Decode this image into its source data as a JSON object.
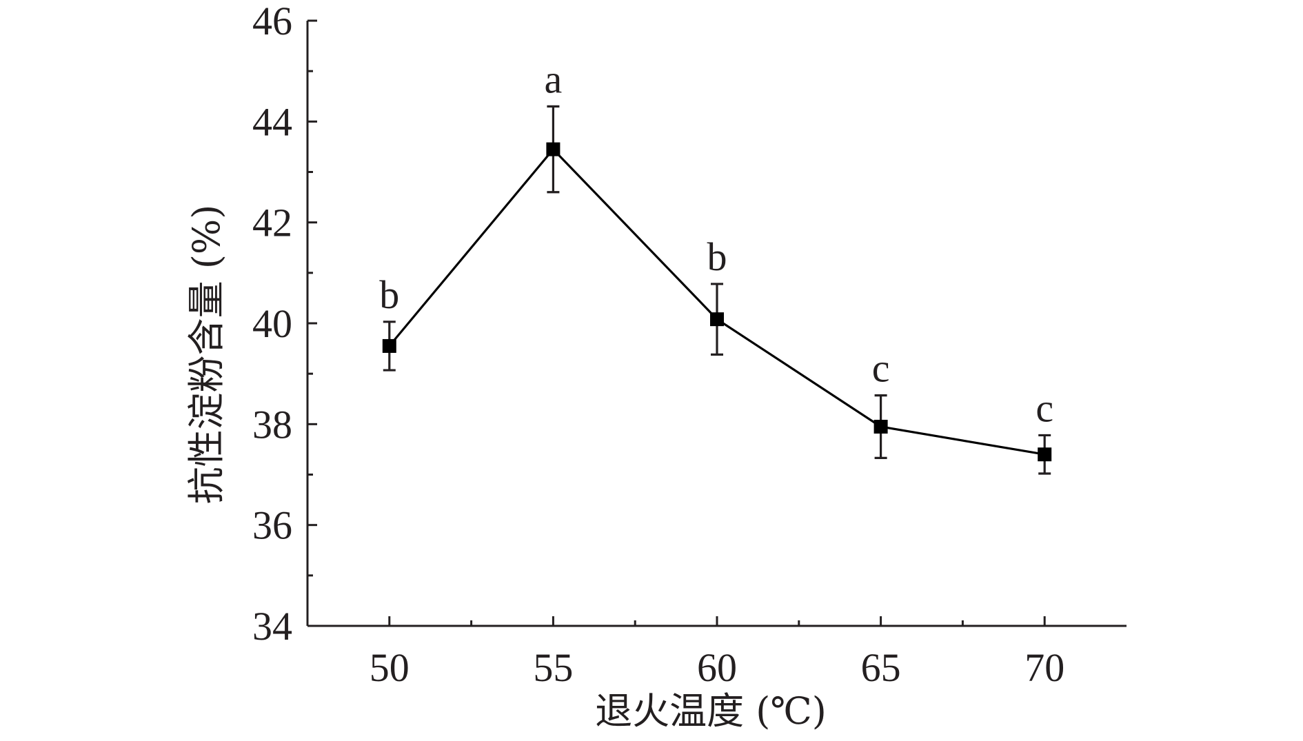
{
  "chart_data": {
    "type": "line",
    "title": "",
    "xlabel": "退火温度 (℃)",
    "ylabel": "抗性淀粉含量 (%)",
    "xlim": [
      47.5,
      72.5
    ],
    "ylim": [
      34,
      46
    ],
    "x_ticks": [
      "50",
      "55",
      "60",
      "65",
      "70"
    ],
    "y_ticks": [
      "34",
      "36",
      "38",
      "40",
      "42",
      "44",
      "46"
    ],
    "x_minor_ticks": [
      52.5,
      57.5,
      62.5,
      67.5
    ],
    "y_minor_ticks": [
      35,
      37,
      39,
      41,
      43,
      45
    ],
    "grid": false,
    "series": [
      {
        "x": [
          50,
          55,
          60,
          65,
          70
        ],
        "values": [
          39.55,
          43.45,
          40.08,
          37.95,
          37.4
        ],
        "error": [
          0.48,
          0.85,
          0.7,
          0.62,
          0.38
        ],
        "marker": "square",
        "color": "#000000"
      }
    ],
    "annotations": [
      "b",
      "a",
      "b",
      "c",
      "c"
    ]
  }
}
